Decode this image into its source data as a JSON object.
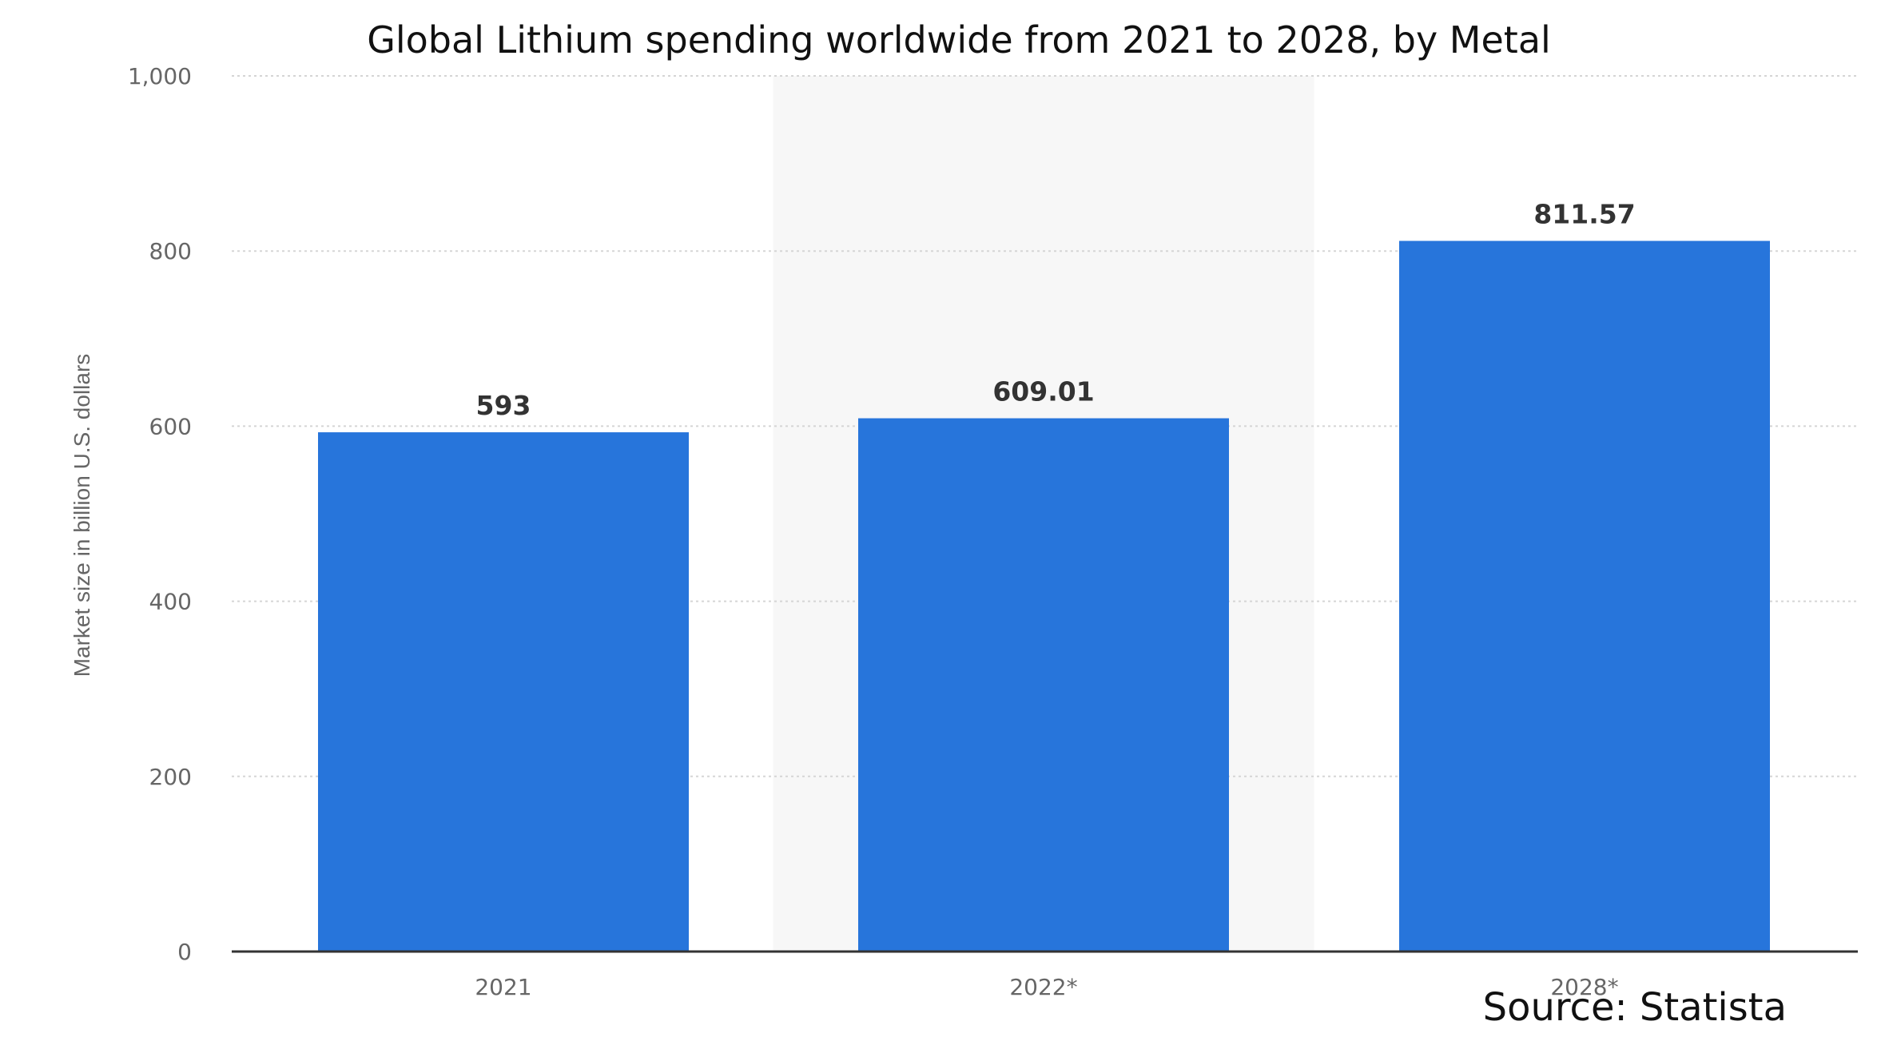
{
  "chart_data": {
    "type": "bar",
    "title": "Global Lithium spending worldwide from 2021 to 2028, by Metal",
    "ylabel": "Market size in billion U.S. dollars",
    "xlabel": "",
    "categories": [
      "2021",
      "2022*",
      "2028*"
    ],
    "values": [
      593,
      609.01,
      811.57
    ],
    "value_labels": [
      "593",
      "609.01",
      "811.57"
    ],
    "ylim": [
      0,
      1000
    ],
    "yticks": [
      0,
      200,
      400,
      600,
      800,
      1000
    ],
    "ytick_labels": [
      "0",
      "200",
      "400",
      "600",
      "800",
      "1,000"
    ],
    "grid": true,
    "highlighted_category_index": 1,
    "colors": {
      "bar": "#2775DB",
      "highlight_band": "#F7F7F7"
    }
  },
  "source": "Source: Statista"
}
